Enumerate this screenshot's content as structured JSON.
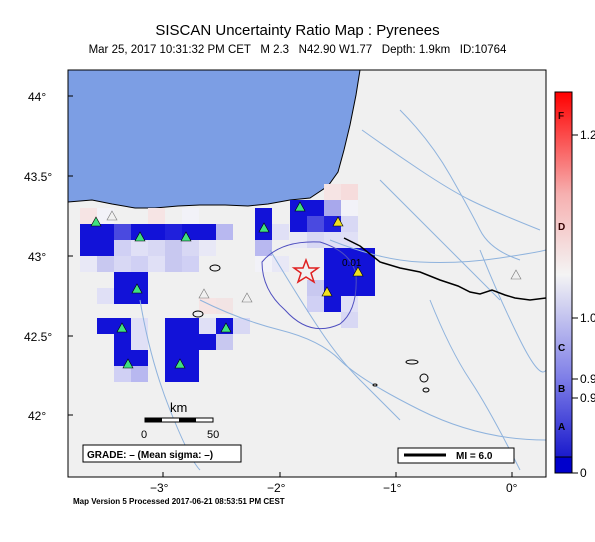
{
  "title": "SISCAN Uncertainty Ratio Map : Pyrenees",
  "subtitle": "Mar 25, 2017 10:31:32 PM CET   M 2.3   N42.90 W1.77   Depth: 1.9km   ID:10764",
  "map": {
    "lat_ticks": [
      {
        "value": 44.0,
        "label": "44°"
      },
      {
        "value": 43.5,
        "label": "43.5°"
      },
      {
        "value": 43.0,
        "label": "43°"
      },
      {
        "value": 42.5,
        "label": "42.5°"
      },
      {
        "value": 42.0,
        "label": "42°"
      }
    ],
    "lon_ticks": [
      {
        "value": -3.0,
        "label": "−3°"
      },
      {
        "value": -2.0,
        "label": "−2°"
      },
      {
        "value": -1.0,
        "label": "−1°"
      },
      {
        "value": 0.0,
        "label": "0°"
      }
    ],
    "extent": {
      "lon_min": -3.85,
      "lon_max": 0.25,
      "lat_min": 41.7,
      "lat_max": 44.25
    },
    "colors": {
      "sea": "#7c9ee4",
      "land": "#f0f0f0",
      "coast": "#000000",
      "river": "#8fb3dd"
    },
    "epicenter": {
      "lon": -1.77,
      "lat": 42.9,
      "color": "#e02020"
    },
    "contour_label": "0.01",
    "scale_label": "km",
    "scale_ticks": [
      "0",
      "50"
    ],
    "grade_label": "GRADE: – (Mean sigma: –)",
    "mi_label": "MI = 6.0"
  },
  "colorbar": {
    "letters": [
      "F",
      "D",
      "C",
      "B",
      "A"
    ],
    "values": [
      "1.2",
      "1.0",
      "0.9",
      "0.9",
      "0"
    ],
    "colors": [
      "#0000cc",
      "#ffffff",
      "#ff0000"
    ]
  },
  "footer": "Map Version 5 Processed 2017-06-21 08:53:51 PM CEST"
}
